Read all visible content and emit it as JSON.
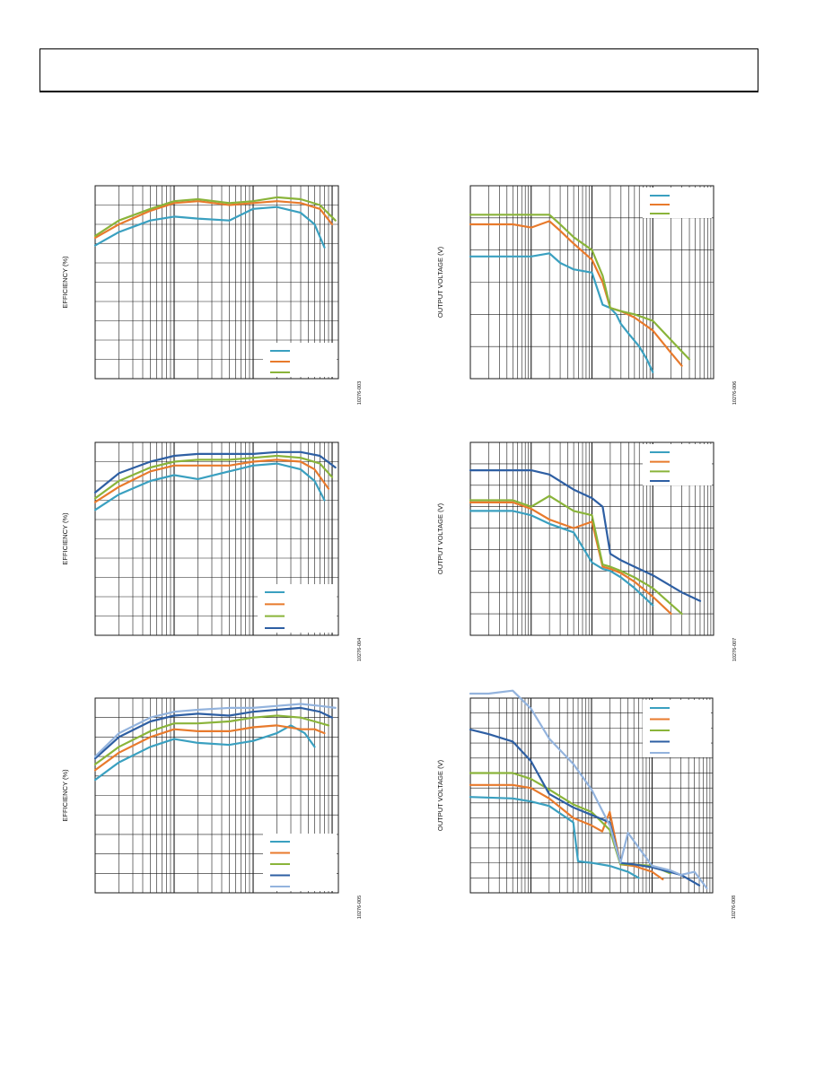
{
  "page": {
    "header_box": ""
  },
  "colors": {
    "grid": "#1a1a1a",
    "series": [
      "#3aa0c0",
      "#e87a2c",
      "#8ab43a",
      "#2e5fa3",
      "#93b3dd",
      "#b5302e"
    ]
  },
  "chart_data": [
    {
      "type": "line",
      "panel": "top-left",
      "title": "",
      "xlabel": "",
      "ylabel": "EFFICIENCY (%)",
      "figure_code": "10276-003",
      "xscale": "log",
      "xlim": [
        0.001,
        1.2
      ],
      "ylim": [
        0,
        100
      ],
      "grid": true,
      "legend_position": "bottom-right",
      "series": [
        {
          "name": "",
          "x": [
            0.001,
            0.002,
            0.005,
            0.01,
            0.02,
            0.05,
            0.1,
            0.2,
            0.4,
            0.6,
            0.8
          ],
          "y": [
            69,
            76,
            82,
            84,
            83,
            82,
            88,
            89,
            86,
            80,
            68
          ]
        },
        {
          "name": "",
          "x": [
            0.001,
            0.002,
            0.005,
            0.01,
            0.02,
            0.05,
            0.1,
            0.2,
            0.4,
            0.7,
            1.0
          ],
          "y": [
            73,
            80,
            87,
            91,
            92,
            90,
            91,
            92,
            91,
            88,
            80
          ]
        },
        {
          "name": "",
          "x": [
            0.001,
            0.002,
            0.005,
            0.01,
            0.02,
            0.05,
            0.1,
            0.2,
            0.4,
            0.7,
            1.1
          ],
          "y": [
            74,
            82,
            88,
            92,
            93,
            91,
            92,
            94,
            93,
            90,
            82
          ]
        }
      ]
    },
    {
      "type": "line",
      "panel": "mid-left",
      "title": "",
      "xlabel": "",
      "ylabel": "EFFICIENCY (%)",
      "figure_code": "10276-004",
      "xscale": "log",
      "xlim": [
        0.001,
        1.2
      ],
      "ylim": [
        0,
        100
      ],
      "grid": true,
      "legend_position": "bottom-right",
      "series": [
        {
          "name": "",
          "x": [
            0.001,
            0.002,
            0.005,
            0.01,
            0.02,
            0.05,
            0.1,
            0.2,
            0.4,
            0.6,
            0.8
          ],
          "y": [
            65,
            73,
            80,
            83,
            81,
            85,
            88,
            89,
            86,
            80,
            70
          ]
        },
        {
          "name": "",
          "x": [
            0.001,
            0.002,
            0.005,
            0.01,
            0.02,
            0.05,
            0.1,
            0.2,
            0.4,
            0.6,
            0.9
          ],
          "y": [
            69,
            77,
            85,
            88,
            88,
            88,
            90,
            91,
            90,
            86,
            76
          ]
        },
        {
          "name": "",
          "x": [
            0.001,
            0.002,
            0.005,
            0.01,
            0.02,
            0.05,
            0.1,
            0.2,
            0.4,
            0.7,
            1.0
          ],
          "y": [
            71,
            80,
            87,
            90,
            91,
            91,
            92,
            93,
            92,
            89,
            82
          ]
        },
        {
          "name": "",
          "x": [
            0.001,
            0.002,
            0.005,
            0.01,
            0.02,
            0.05,
            0.1,
            0.2,
            0.4,
            0.7,
            1.1
          ],
          "y": [
            74,
            84,
            90,
            93,
            94,
            94,
            94,
            95,
            95,
            93,
            87
          ]
        }
      ]
    },
    {
      "type": "line",
      "panel": "bottom-left",
      "title": "",
      "xlabel": "",
      "ylabel": "EFFICIENCY (%)",
      "figure_code": "10276-005",
      "xscale": "log",
      "xlim": [
        0.001,
        1.2
      ],
      "ylim": [
        0,
        100
      ],
      "grid": true,
      "legend_position": "bottom-right",
      "series": [
        {
          "name": "",
          "x": [
            0.001,
            0.002,
            0.005,
            0.01,
            0.02,
            0.05,
            0.1,
            0.2,
            0.3,
            0.45,
            0.6
          ],
          "y": [
            58,
            67,
            75,
            79,
            77,
            76,
            78,
            82,
            86,
            82,
            75
          ]
        },
        {
          "name": "",
          "x": [
            0.001,
            0.002,
            0.005,
            0.01,
            0.02,
            0.05,
            0.1,
            0.2,
            0.4,
            0.6,
            0.8
          ],
          "y": [
            63,
            72,
            80,
            84,
            83,
            83,
            85,
            86,
            84,
            84,
            82
          ]
        },
        {
          "name": "",
          "x": [
            0.001,
            0.002,
            0.005,
            0.01,
            0.02,
            0.05,
            0.1,
            0.2,
            0.4,
            0.6,
            0.9
          ],
          "y": [
            66,
            75,
            83,
            87,
            87,
            88,
            90,
            91,
            90,
            88,
            86
          ]
        },
        {
          "name": "",
          "x": [
            0.001,
            0.002,
            0.005,
            0.01,
            0.02,
            0.05,
            0.1,
            0.2,
            0.4,
            0.7,
            1.0
          ],
          "y": [
            69,
            80,
            88,
            91,
            92,
            91,
            93,
            94,
            95,
            93,
            90
          ]
        },
        {
          "name": "",
          "x": [
            0.001,
            0.002,
            0.005,
            0.01,
            0.02,
            0.05,
            0.1,
            0.2,
            0.4,
            0.7,
            1.1
          ],
          "y": [
            70,
            82,
            90,
            93,
            94,
            95,
            95,
            96,
            97,
            96,
            95
          ]
        }
      ]
    },
    {
      "type": "line",
      "panel": "top-right",
      "title": "",
      "xlabel": "",
      "ylabel": "OUTPUT VOLTAGE (V)",
      "figure_code": "10276-006",
      "xscale": "log",
      "xlim": [
        0.001,
        10
      ],
      "ylim": [
        0,
        6
      ],
      "grid": true,
      "legend_position": "top-right",
      "series": [
        {
          "name": "",
          "x": [
            0.001,
            0.005,
            0.01,
            0.02,
            0.03,
            0.05,
            0.1,
            0.15,
            0.2,
            0.25,
            0.3,
            0.4,
            0.6,
            0.8,
            1.0
          ],
          "y": [
            3.8,
            3.8,
            3.8,
            3.9,
            3.6,
            3.4,
            3.3,
            2.3,
            2.2,
            2.0,
            1.7,
            1.4,
            1.0,
            0.6,
            0.2
          ]
        },
        {
          "name": "",
          "x": [
            0.001,
            0.005,
            0.01,
            0.02,
            0.03,
            0.05,
            0.1,
            0.15,
            0.2,
            0.3,
            0.5,
            1.0,
            2.0,
            3.0
          ],
          "y": [
            4.8,
            4.8,
            4.7,
            4.9,
            4.6,
            4.2,
            3.7,
            3.0,
            2.2,
            2.1,
            1.9,
            1.5,
            0.8,
            0.4
          ]
        },
        {
          "name": "",
          "x": [
            0.001,
            0.005,
            0.01,
            0.02,
            0.03,
            0.05,
            0.1,
            0.15,
            0.2,
            0.3,
            0.5,
            1.0,
            2.0,
            4.0
          ],
          "y": [
            5.1,
            5.1,
            5.1,
            5.1,
            4.8,
            4.4,
            4.0,
            3.2,
            2.2,
            2.1,
            2.0,
            1.8,
            1.2,
            0.6
          ]
        }
      ]
    },
    {
      "type": "line",
      "panel": "mid-right",
      "title": "",
      "xlabel": "",
      "ylabel": "OUTPUT VOLTAGE (V)",
      "figure_code": "10276-007",
      "xscale": "log",
      "xlim": [
        0.001,
        10
      ],
      "ylim": [
        0,
        9
      ],
      "grid": true,
      "legend_position": "top-right",
      "series": [
        {
          "name": "",
          "x": [
            0.001,
            0.005,
            0.01,
            0.02,
            0.05,
            0.1,
            0.15,
            0.2,
            0.3,
            0.5,
            1.0
          ],
          "y": [
            5.8,
            5.8,
            5.6,
            5.2,
            4.8,
            3.4,
            3.1,
            3.0,
            2.7,
            2.2,
            1.4
          ]
        },
        {
          "name": "",
          "x": [
            0.001,
            0.005,
            0.01,
            0.02,
            0.05,
            0.1,
            0.15,
            0.2,
            0.3,
            0.5,
            1.0,
            2.0
          ],
          "y": [
            6.2,
            6.2,
            5.9,
            5.4,
            5.0,
            5.3,
            3.2,
            3.1,
            2.9,
            2.5,
            1.8,
            1.0
          ]
        },
        {
          "name": "",
          "x": [
            0.001,
            0.005,
            0.01,
            0.02,
            0.05,
            0.1,
            0.15,
            0.2,
            0.3,
            0.5,
            1.0,
            3.0
          ],
          "y": [
            6.3,
            6.3,
            6.0,
            6.5,
            5.8,
            5.6,
            3.3,
            3.2,
            3.0,
            2.7,
            2.2,
            1.0
          ]
        },
        {
          "name": "",
          "x": [
            0.001,
            0.005,
            0.01,
            0.02,
            0.05,
            0.1,
            0.15,
            0.2,
            0.3,
            0.5,
            1.0,
            3.0,
            6.0
          ],
          "y": [
            7.7,
            7.7,
            7.7,
            7.5,
            6.8,
            6.4,
            6.0,
            3.8,
            3.5,
            3.2,
            2.8,
            2.0,
            1.6
          ]
        }
      ]
    },
    {
      "type": "line",
      "panel": "bottom-right",
      "title": "",
      "xlabel": "",
      "ylabel": "OUTPUT VOLTAGE (V)",
      "figure_code": "10276-008",
      "xscale": "log",
      "xlim": [
        0.001,
        10
      ],
      "ylim": [
        0,
        13
      ],
      "grid": true,
      "legend_position": "top-right",
      "series": [
        {
          "name": "",
          "x": [
            0.001,
            0.005,
            0.01,
            0.02,
            0.05,
            0.06,
            0.1,
            0.2,
            0.4,
            0.6
          ],
          "y": [
            6.4,
            6.3,
            6.1,
            5.8,
            4.7,
            2.1,
            2.0,
            1.8,
            1.4,
            1.0
          ]
        },
        {
          "name": "",
          "x": [
            0.001,
            0.005,
            0.01,
            0.02,
            0.05,
            0.1,
            0.15,
            0.2,
            0.3,
            0.5,
            1.0,
            1.5
          ],
          "y": [
            7.2,
            7.2,
            7.0,
            6.3,
            5.0,
            4.5,
            4.1,
            5.4,
            1.9,
            1.8,
            1.4,
            0.9
          ]
        },
        {
          "name": "",
          "x": [
            0.001,
            0.005,
            0.01,
            0.02,
            0.05,
            0.1,
            0.2,
            0.3,
            0.5,
            1.0,
            2.0
          ],
          "y": [
            8.0,
            8.0,
            7.6,
            6.9,
            5.9,
            5.4,
            4.2,
            1.9,
            1.9,
            1.8,
            1.3
          ]
        },
        {
          "name": "",
          "x": [
            0.001,
            0.002,
            0.005,
            0.01,
            0.02,
            0.05,
            0.1,
            0.2,
            0.3,
            0.5,
            1.0,
            3.0,
            6.0
          ],
          "y": [
            10.9,
            10.6,
            10.1,
            8.8,
            6.6,
            5.7,
            5.2,
            4.7,
            2.0,
            1.9,
            1.7,
            1.2,
            0.5
          ]
        },
        {
          "name": "",
          "x": [
            0.001,
            0.002,
            0.005,
            0.01,
            0.02,
            0.05,
            0.1,
            0.2,
            0.3,
            0.4,
            1.0,
            2.0,
            3.0,
            5.0,
            8.0
          ],
          "y": [
            13.3,
            13.3,
            13.5,
            12.3,
            10.3,
            8.6,
            6.9,
            4.5,
            2.0,
            4.0,
            1.8,
            1.5,
            1.2,
            1.4,
            0.3
          ]
        }
      ]
    }
  ]
}
